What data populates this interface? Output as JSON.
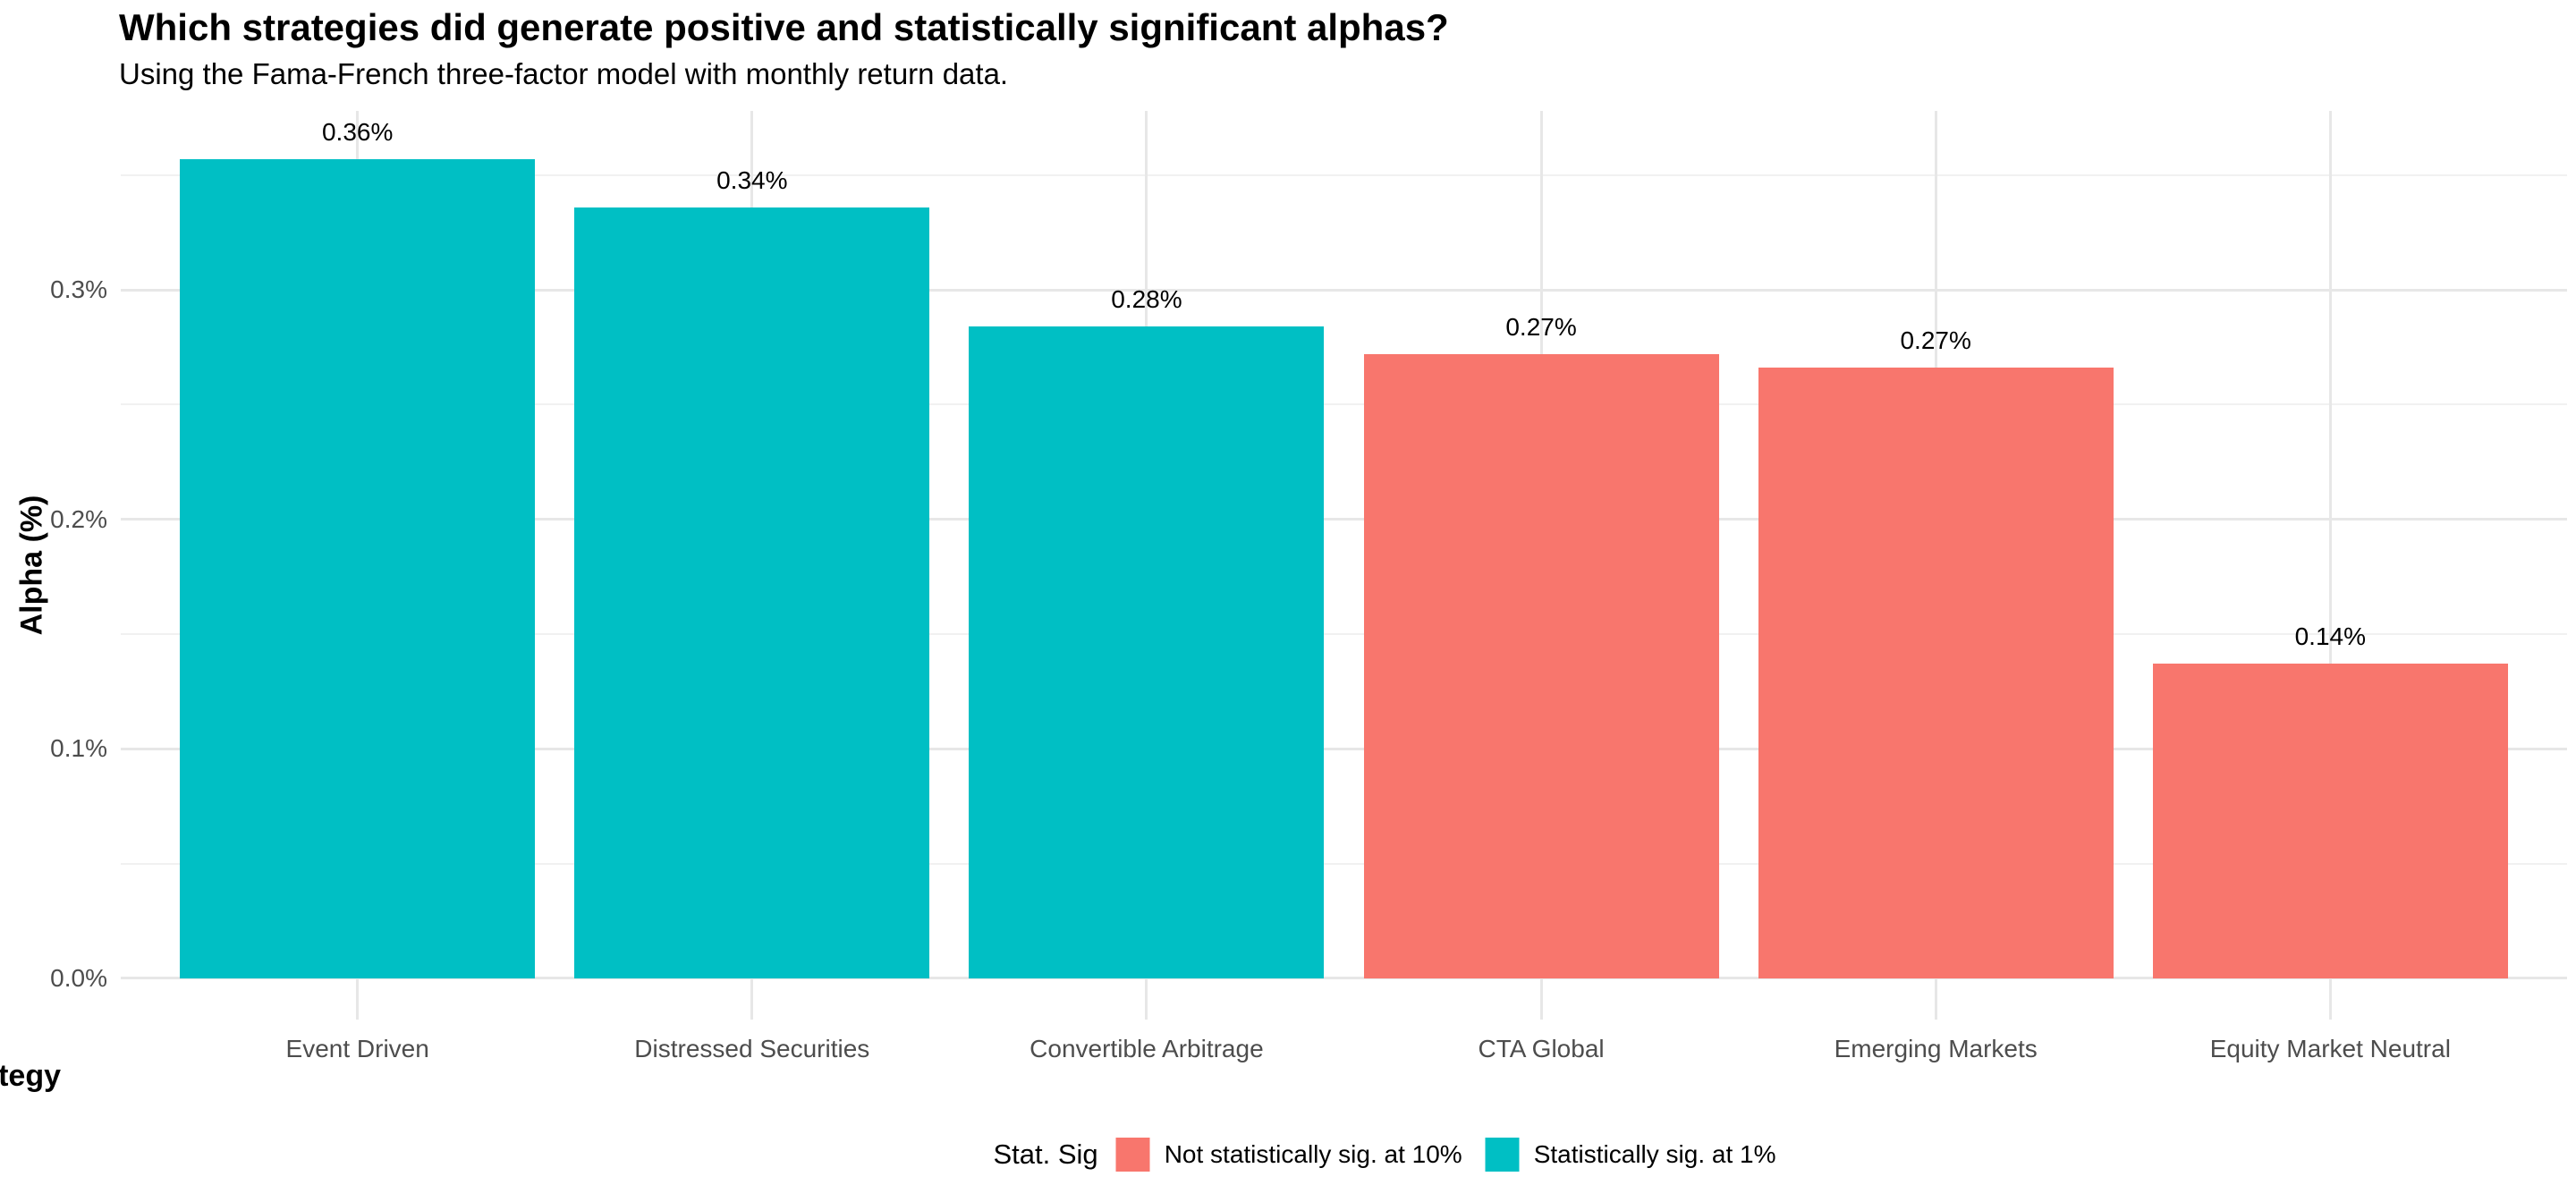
{
  "figure": {
    "title": "Which strategies did generate positive and statistically significant alphas?",
    "subtitle": "Using the Fama-French three-factor model with monthly return data."
  },
  "chart_data": {
    "type": "bar",
    "title": "Which strategies did generate positive and statistically significant alphas?",
    "subtitle": "Using the Fama-French three-factor model with monthly return data.",
    "xlabel": "Strategy",
    "ylabel": "Alpha (%)",
    "categories": [
      "Event Driven",
      "Distressed Securities",
      "Convertible Arbitrage",
      "CTA Global",
      "Emerging Markets",
      "Equity Market Neutral"
    ],
    "values": [
      0.357,
      0.336,
      0.284,
      0.272,
      0.266,
      0.137
    ],
    "bar_labels": [
      "0.36%",
      "0.34%",
      "0.28%",
      "0.27%",
      "0.27%",
      "0.14%"
    ],
    "significance_keys": [
      "sig_1pct",
      "sig_1pct",
      "sig_1pct",
      "not_sig_10pct",
      "not_sig_10pct",
      "not_sig_10pct"
    ],
    "colors": {
      "sig_1pct": "#00BFC4",
      "not_sig_10pct": "#F8766D"
    },
    "y_ticks": [
      {
        "value": 0.0,
        "label": "0.0%"
      },
      {
        "value": 0.1,
        "label": "0.1%"
      },
      {
        "value": 0.2,
        "label": "0.2%"
      },
      {
        "value": 0.3,
        "label": "0.3%"
      }
    ],
    "y_minor_ticks": [
      0.05,
      0.15,
      0.25,
      0.35
    ],
    "ylim": [
      -0.018,
      0.378
    ],
    "bar_width_ratio": 0.9,
    "grid": {
      "horizontal": "major and minor gridlines on",
      "vertical": "major gridlines at category centers"
    },
    "legend": {
      "title": "Stat. Sig",
      "position": "bottom",
      "items": [
        {
          "key": "not_sig_10pct",
          "label": "Not statistically sig. at 10%",
          "color": "#F8766D"
        },
        {
          "key": "sig_1pct",
          "label": "Statistically sig. at 1%",
          "color": "#00BFC4"
        }
      ]
    },
    "theme": {
      "background": "#FFFFFF",
      "grid_major_color": "#E7E7E7",
      "grid_minor_color": "#F1F1F1",
      "tick_label_color": "#4D4D4D",
      "text_color": "#000000"
    }
  }
}
